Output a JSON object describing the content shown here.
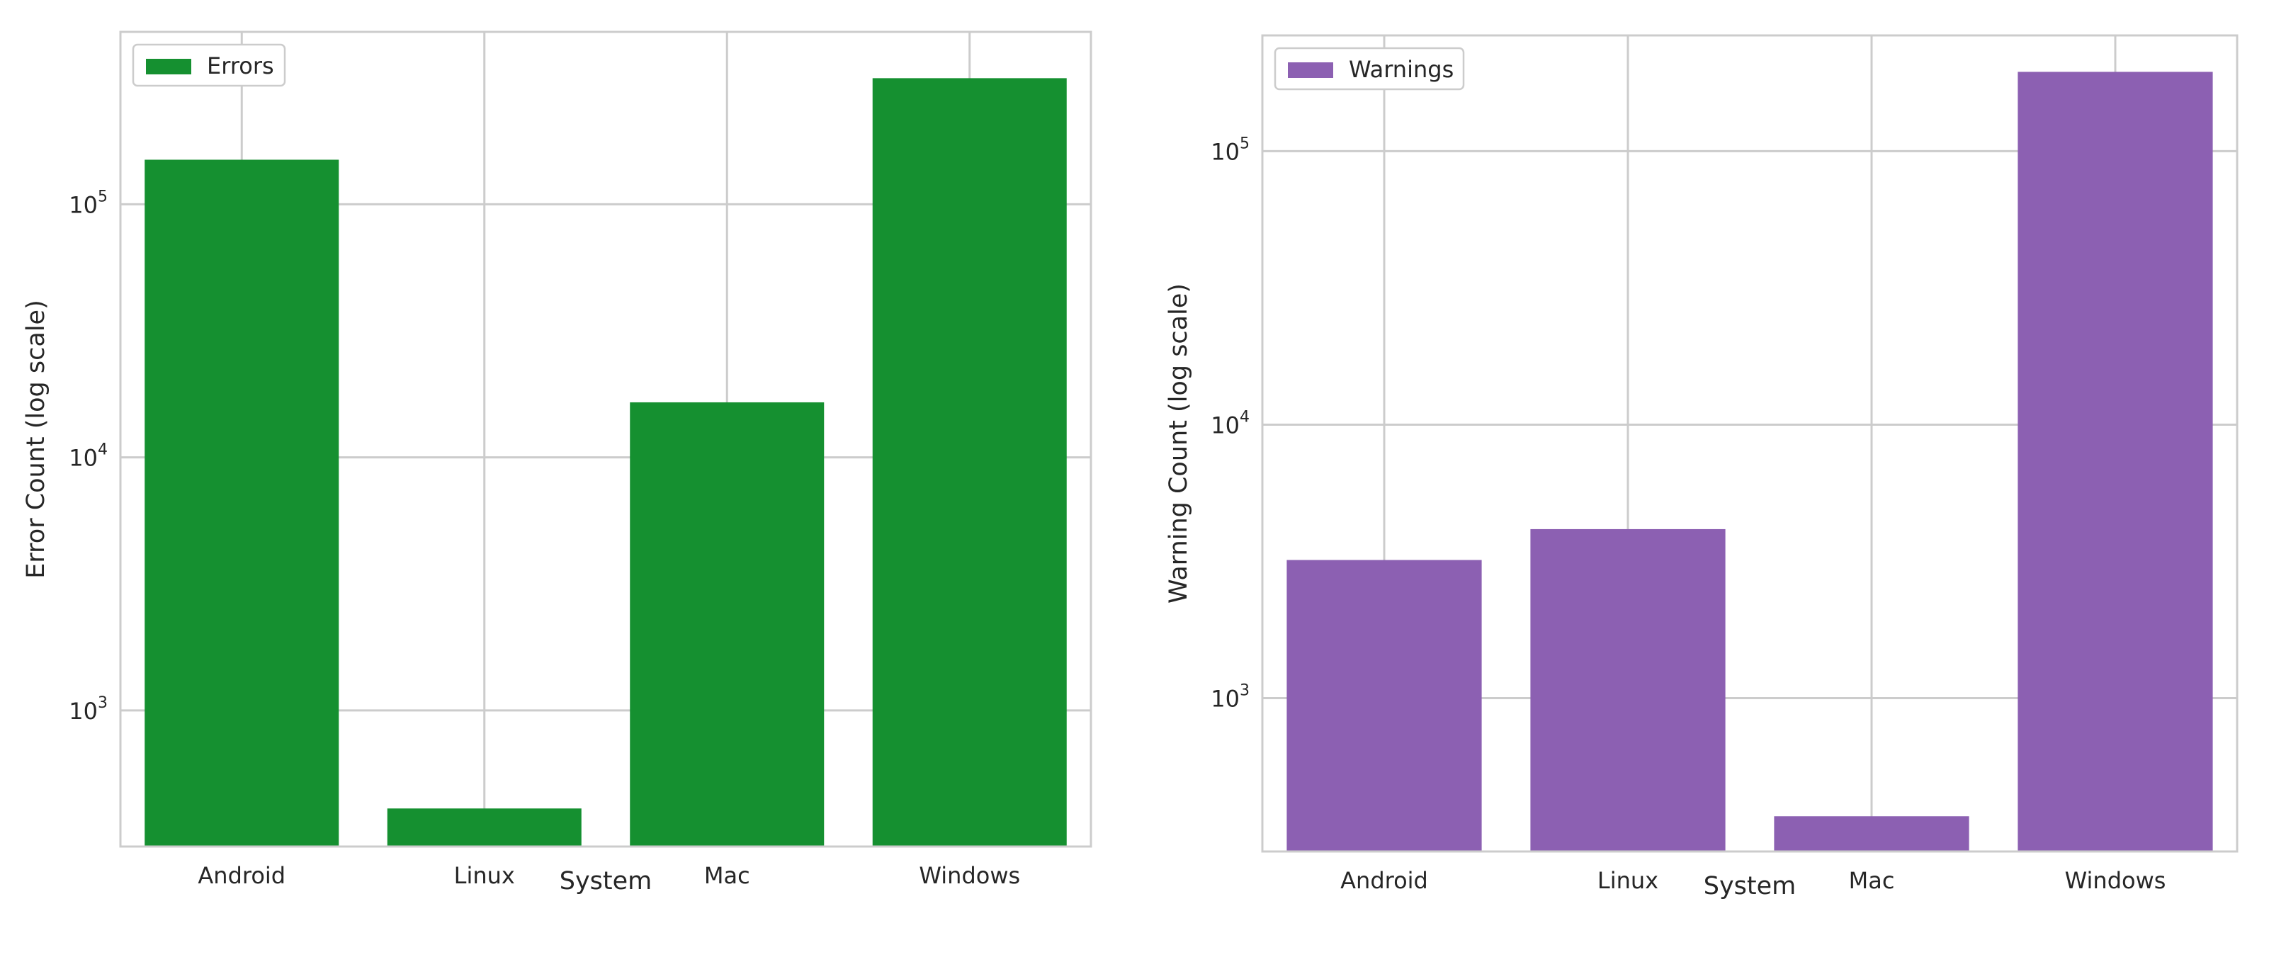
{
  "chart_data": [
    {
      "type": "bar",
      "categories": [
        "Android",
        "Linux",
        "Mac",
        "Windows"
      ],
      "series": [
        {
          "name": "Errors",
          "values": [
            150000,
            410,
            16500,
            315000
          ]
        }
      ],
      "xlabel": "System",
      "ylabel": "Error Count (log scale)",
      "yscale": "log",
      "ylim": [
        290,
        480000
      ],
      "yticks": [
        {
          "base": "10",
          "exp": "3",
          "value": 1000
        },
        {
          "base": "10",
          "exp": "4",
          "value": 10000
        },
        {
          "base": "10",
          "exp": "5",
          "value": 100000
        }
      ],
      "grid": true,
      "legend_position": "top-left",
      "color": "#159030"
    },
    {
      "type": "bar",
      "categories": [
        "Android",
        "Linux",
        "Mac",
        "Windows"
      ],
      "series": [
        {
          "name": "Warnings",
          "values": [
            3200,
            4150,
            370,
            195000
          ]
        }
      ],
      "xlabel": "System",
      "ylabel": "Warning Count (log scale)",
      "yscale": "log",
      "ylim": [
        275,
        265000
      ],
      "yticks": [
        {
          "base": "10",
          "exp": "3",
          "value": 1000
        },
        {
          "base": "10",
          "exp": "4",
          "value": 10000
        },
        {
          "base": "10",
          "exp": "5",
          "value": 100000
        }
      ],
      "grid": true,
      "legend_position": "top-left",
      "color": "#8c60b2"
    }
  ]
}
